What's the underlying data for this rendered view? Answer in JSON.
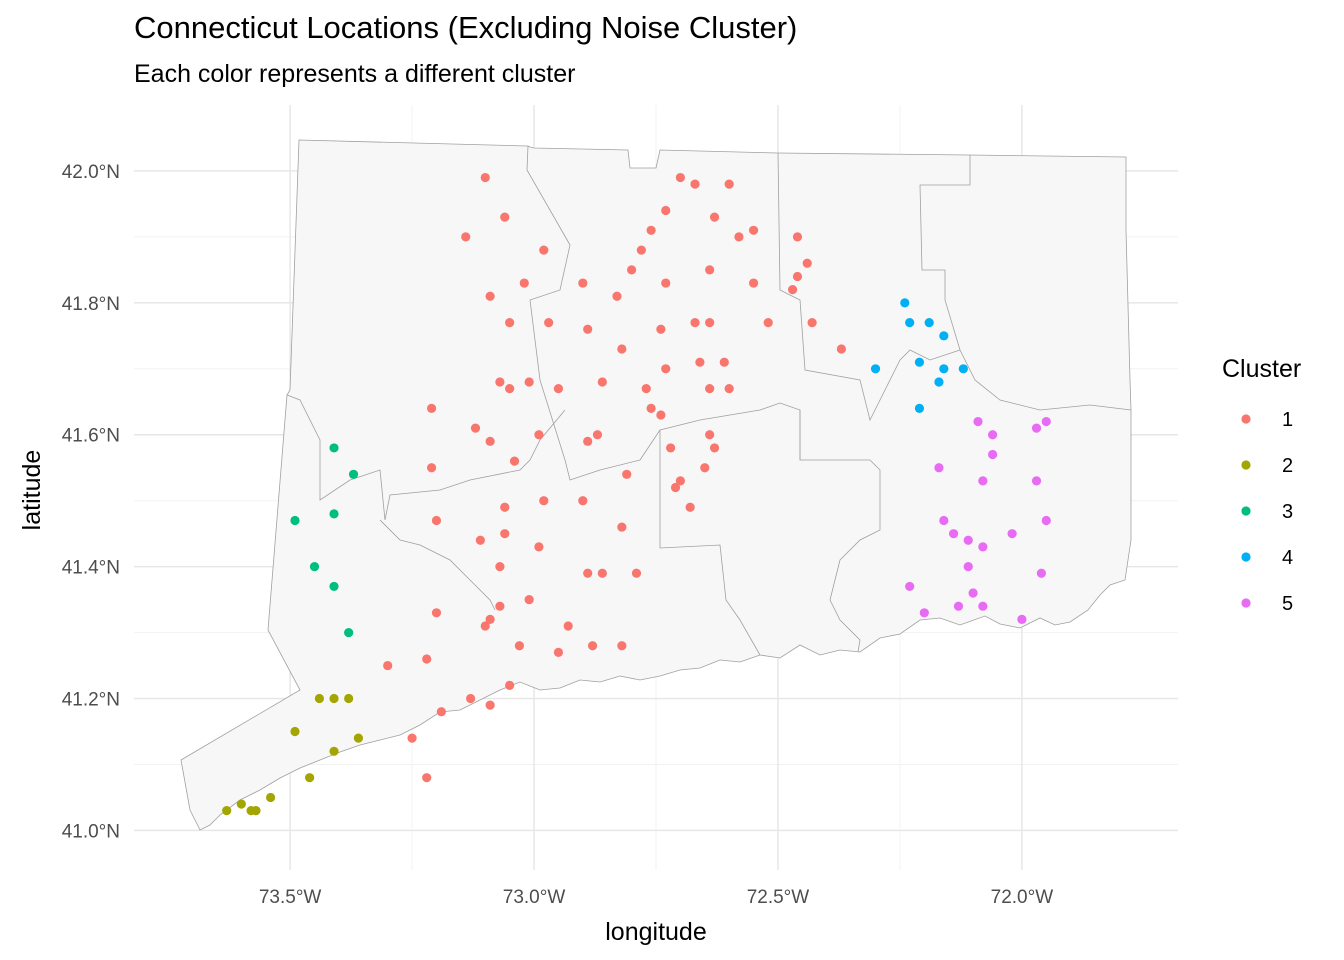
{
  "chart_data": {
    "type": "scatter",
    "title": "Connecticut Locations (Excluding Noise Cluster)",
    "subtitle": "Each color represents a different cluster",
    "xlabel": "longitude",
    "ylabel": "latitude",
    "xlim": [
      -73.82,
      -71.68
    ],
    "ylim": [
      40.94,
      42.1
    ],
    "x_ticks": [
      {
        "value": -73.5,
        "label": "73.5°W"
      },
      {
        "value": -73.0,
        "label": "73.0°W"
      },
      {
        "value": -72.5,
        "label": "72.5°W"
      },
      {
        "value": -72.0,
        "label": "72.0°W"
      }
    ],
    "y_ticks": [
      {
        "value": 41.0,
        "label": "41.0°N"
      },
      {
        "value": 41.2,
        "label": "41.2°N"
      },
      {
        "value": 41.4,
        "label": "41.4°N"
      },
      {
        "value": 41.6,
        "label": "41.6°N"
      },
      {
        "value": 41.8,
        "label": "41.8°N"
      },
      {
        "value": 42.0,
        "label": "42.0°N"
      }
    ],
    "grid": true,
    "legend": {
      "title": "Cluster",
      "position": "right"
    },
    "series": [
      {
        "name": "1",
        "color": "#F8766D",
        "points": [
          [
            -73.1,
            41.99
          ],
          [
            -72.7,
            41.99
          ],
          [
            -72.67,
            41.98
          ],
          [
            -72.6,
            41.98
          ],
          [
            -73.06,
            41.93
          ],
          [
            -72.73,
            41.94
          ],
          [
            -73.14,
            41.9
          ],
          [
            -72.63,
            41.93
          ],
          [
            -72.58,
            41.9
          ],
          [
            -72.55,
            41.91
          ],
          [
            -72.46,
            41.9
          ],
          [
            -72.98,
            41.88
          ],
          [
            -72.78,
            41.88
          ],
          [
            -72.76,
            41.91
          ],
          [
            -72.64,
            41.85
          ],
          [
            -72.8,
            41.85
          ],
          [
            -72.44,
            41.86
          ],
          [
            -72.46,
            41.84
          ],
          [
            -73.02,
            41.83
          ],
          [
            -72.9,
            41.83
          ],
          [
            -72.73,
            41.83
          ],
          [
            -72.55,
            41.83
          ],
          [
            -72.47,
            41.82
          ],
          [
            -73.09,
            41.81
          ],
          [
            -72.83,
            41.81
          ],
          [
            -73.05,
            41.77
          ],
          [
            -72.97,
            41.77
          ],
          [
            -72.89,
            41.76
          ],
          [
            -72.74,
            41.76
          ],
          [
            -72.67,
            41.77
          ],
          [
            -72.64,
            41.77
          ],
          [
            -72.52,
            41.77
          ],
          [
            -72.43,
            41.77
          ],
          [
            -72.82,
            41.73
          ],
          [
            -72.37,
            41.73
          ],
          [
            -72.66,
            41.71
          ],
          [
            -72.61,
            41.71
          ],
          [
            -72.73,
            41.7
          ],
          [
            -73.07,
            41.68
          ],
          [
            -73.05,
            41.67
          ],
          [
            -73.01,
            41.68
          ],
          [
            -72.95,
            41.67
          ],
          [
            -72.86,
            41.68
          ],
          [
            -72.77,
            41.67
          ],
          [
            -72.64,
            41.67
          ],
          [
            -72.6,
            41.67
          ],
          [
            -72.76,
            41.64
          ],
          [
            -72.74,
            41.63
          ],
          [
            -73.21,
            41.64
          ],
          [
            -73.12,
            41.61
          ],
          [
            -73.09,
            41.59
          ],
          [
            -72.99,
            41.6
          ],
          [
            -72.87,
            41.6
          ],
          [
            -72.89,
            41.59
          ],
          [
            -72.72,
            41.58
          ],
          [
            -72.64,
            41.6
          ],
          [
            -72.63,
            41.58
          ],
          [
            -73.21,
            41.55
          ],
          [
            -73.04,
            41.56
          ],
          [
            -72.81,
            41.54
          ],
          [
            -72.7,
            41.53
          ],
          [
            -72.71,
            41.52
          ],
          [
            -72.65,
            41.55
          ],
          [
            -73.06,
            41.49
          ],
          [
            -72.98,
            41.5
          ],
          [
            -72.9,
            41.5
          ],
          [
            -72.68,
            41.49
          ],
          [
            -73.2,
            41.47
          ],
          [
            -73.11,
            41.44
          ],
          [
            -73.06,
            41.45
          ],
          [
            -72.99,
            41.43
          ],
          [
            -72.82,
            41.46
          ],
          [
            -73.07,
            41.4
          ],
          [
            -72.89,
            41.39
          ],
          [
            -72.86,
            41.39
          ],
          [
            -72.79,
            41.39
          ],
          [
            -73.07,
            41.34
          ],
          [
            -73.01,
            41.35
          ],
          [
            -73.2,
            41.33
          ],
          [
            -73.09,
            41.32
          ],
          [
            -73.1,
            41.31
          ],
          [
            -72.93,
            41.31
          ],
          [
            -73.03,
            41.28
          ],
          [
            -72.95,
            41.27
          ],
          [
            -72.88,
            41.28
          ],
          [
            -72.82,
            41.28
          ],
          [
            -73.3,
            41.25
          ],
          [
            -73.22,
            41.26
          ],
          [
            -73.05,
            41.22
          ],
          [
            -73.13,
            41.2
          ],
          [
            -73.09,
            41.19
          ],
          [
            -73.19,
            41.18
          ],
          [
            -73.25,
            41.14
          ],
          [
            -73.22,
            41.08
          ]
        ]
      },
      {
        "name": "2",
        "color": "#A3A500",
        "points": [
          [
            -73.41,
            41.2
          ],
          [
            -73.38,
            41.2
          ],
          [
            -73.44,
            41.2
          ],
          [
            -73.49,
            41.15
          ],
          [
            -73.36,
            41.14
          ],
          [
            -73.41,
            41.12
          ],
          [
            -73.46,
            41.08
          ],
          [
            -73.54,
            41.05
          ],
          [
            -73.6,
            41.04
          ],
          [
            -73.58,
            41.03
          ],
          [
            -73.57,
            41.03
          ],
          [
            -73.63,
            41.03
          ]
        ]
      },
      {
        "name": "3",
        "color": "#00BF7D",
        "points": [
          [
            -73.41,
            41.58
          ],
          [
            -73.37,
            41.54
          ],
          [
            -73.41,
            41.48
          ],
          [
            -73.49,
            41.47
          ],
          [
            -73.45,
            41.4
          ],
          [
            -73.41,
            41.37
          ],
          [
            -73.38,
            41.3
          ]
        ]
      },
      {
        "name": "4",
        "color": "#00B0F6",
        "points": [
          [
            -72.24,
            41.8
          ],
          [
            -72.23,
            41.77
          ],
          [
            -72.19,
            41.77
          ],
          [
            -72.16,
            41.75
          ],
          [
            -72.21,
            41.71
          ],
          [
            -72.3,
            41.7
          ],
          [
            -72.16,
            41.7
          ],
          [
            -72.12,
            41.7
          ],
          [
            -72.17,
            41.68
          ],
          [
            -72.21,
            41.64
          ]
        ]
      },
      {
        "name": "5",
        "color": "#E76BF3",
        "points": [
          [
            -72.09,
            41.62
          ],
          [
            -71.95,
            41.62
          ],
          [
            -71.97,
            41.61
          ],
          [
            -72.06,
            41.6
          ],
          [
            -72.06,
            41.57
          ],
          [
            -72.17,
            41.55
          ],
          [
            -71.97,
            41.53
          ],
          [
            -72.08,
            41.53
          ],
          [
            -71.95,
            41.47
          ],
          [
            -72.16,
            41.47
          ],
          [
            -72.14,
            41.45
          ],
          [
            -72.02,
            41.45
          ],
          [
            -72.11,
            41.44
          ],
          [
            -72.08,
            41.43
          ],
          [
            -72.11,
            41.4
          ],
          [
            -71.96,
            41.39
          ],
          [
            -72.23,
            41.37
          ],
          [
            -72.1,
            41.36
          ],
          [
            -72.13,
            41.34
          ],
          [
            -72.08,
            41.34
          ],
          [
            -72.2,
            41.33
          ],
          [
            -72.0,
            41.32
          ]
        ]
      }
    ]
  }
}
